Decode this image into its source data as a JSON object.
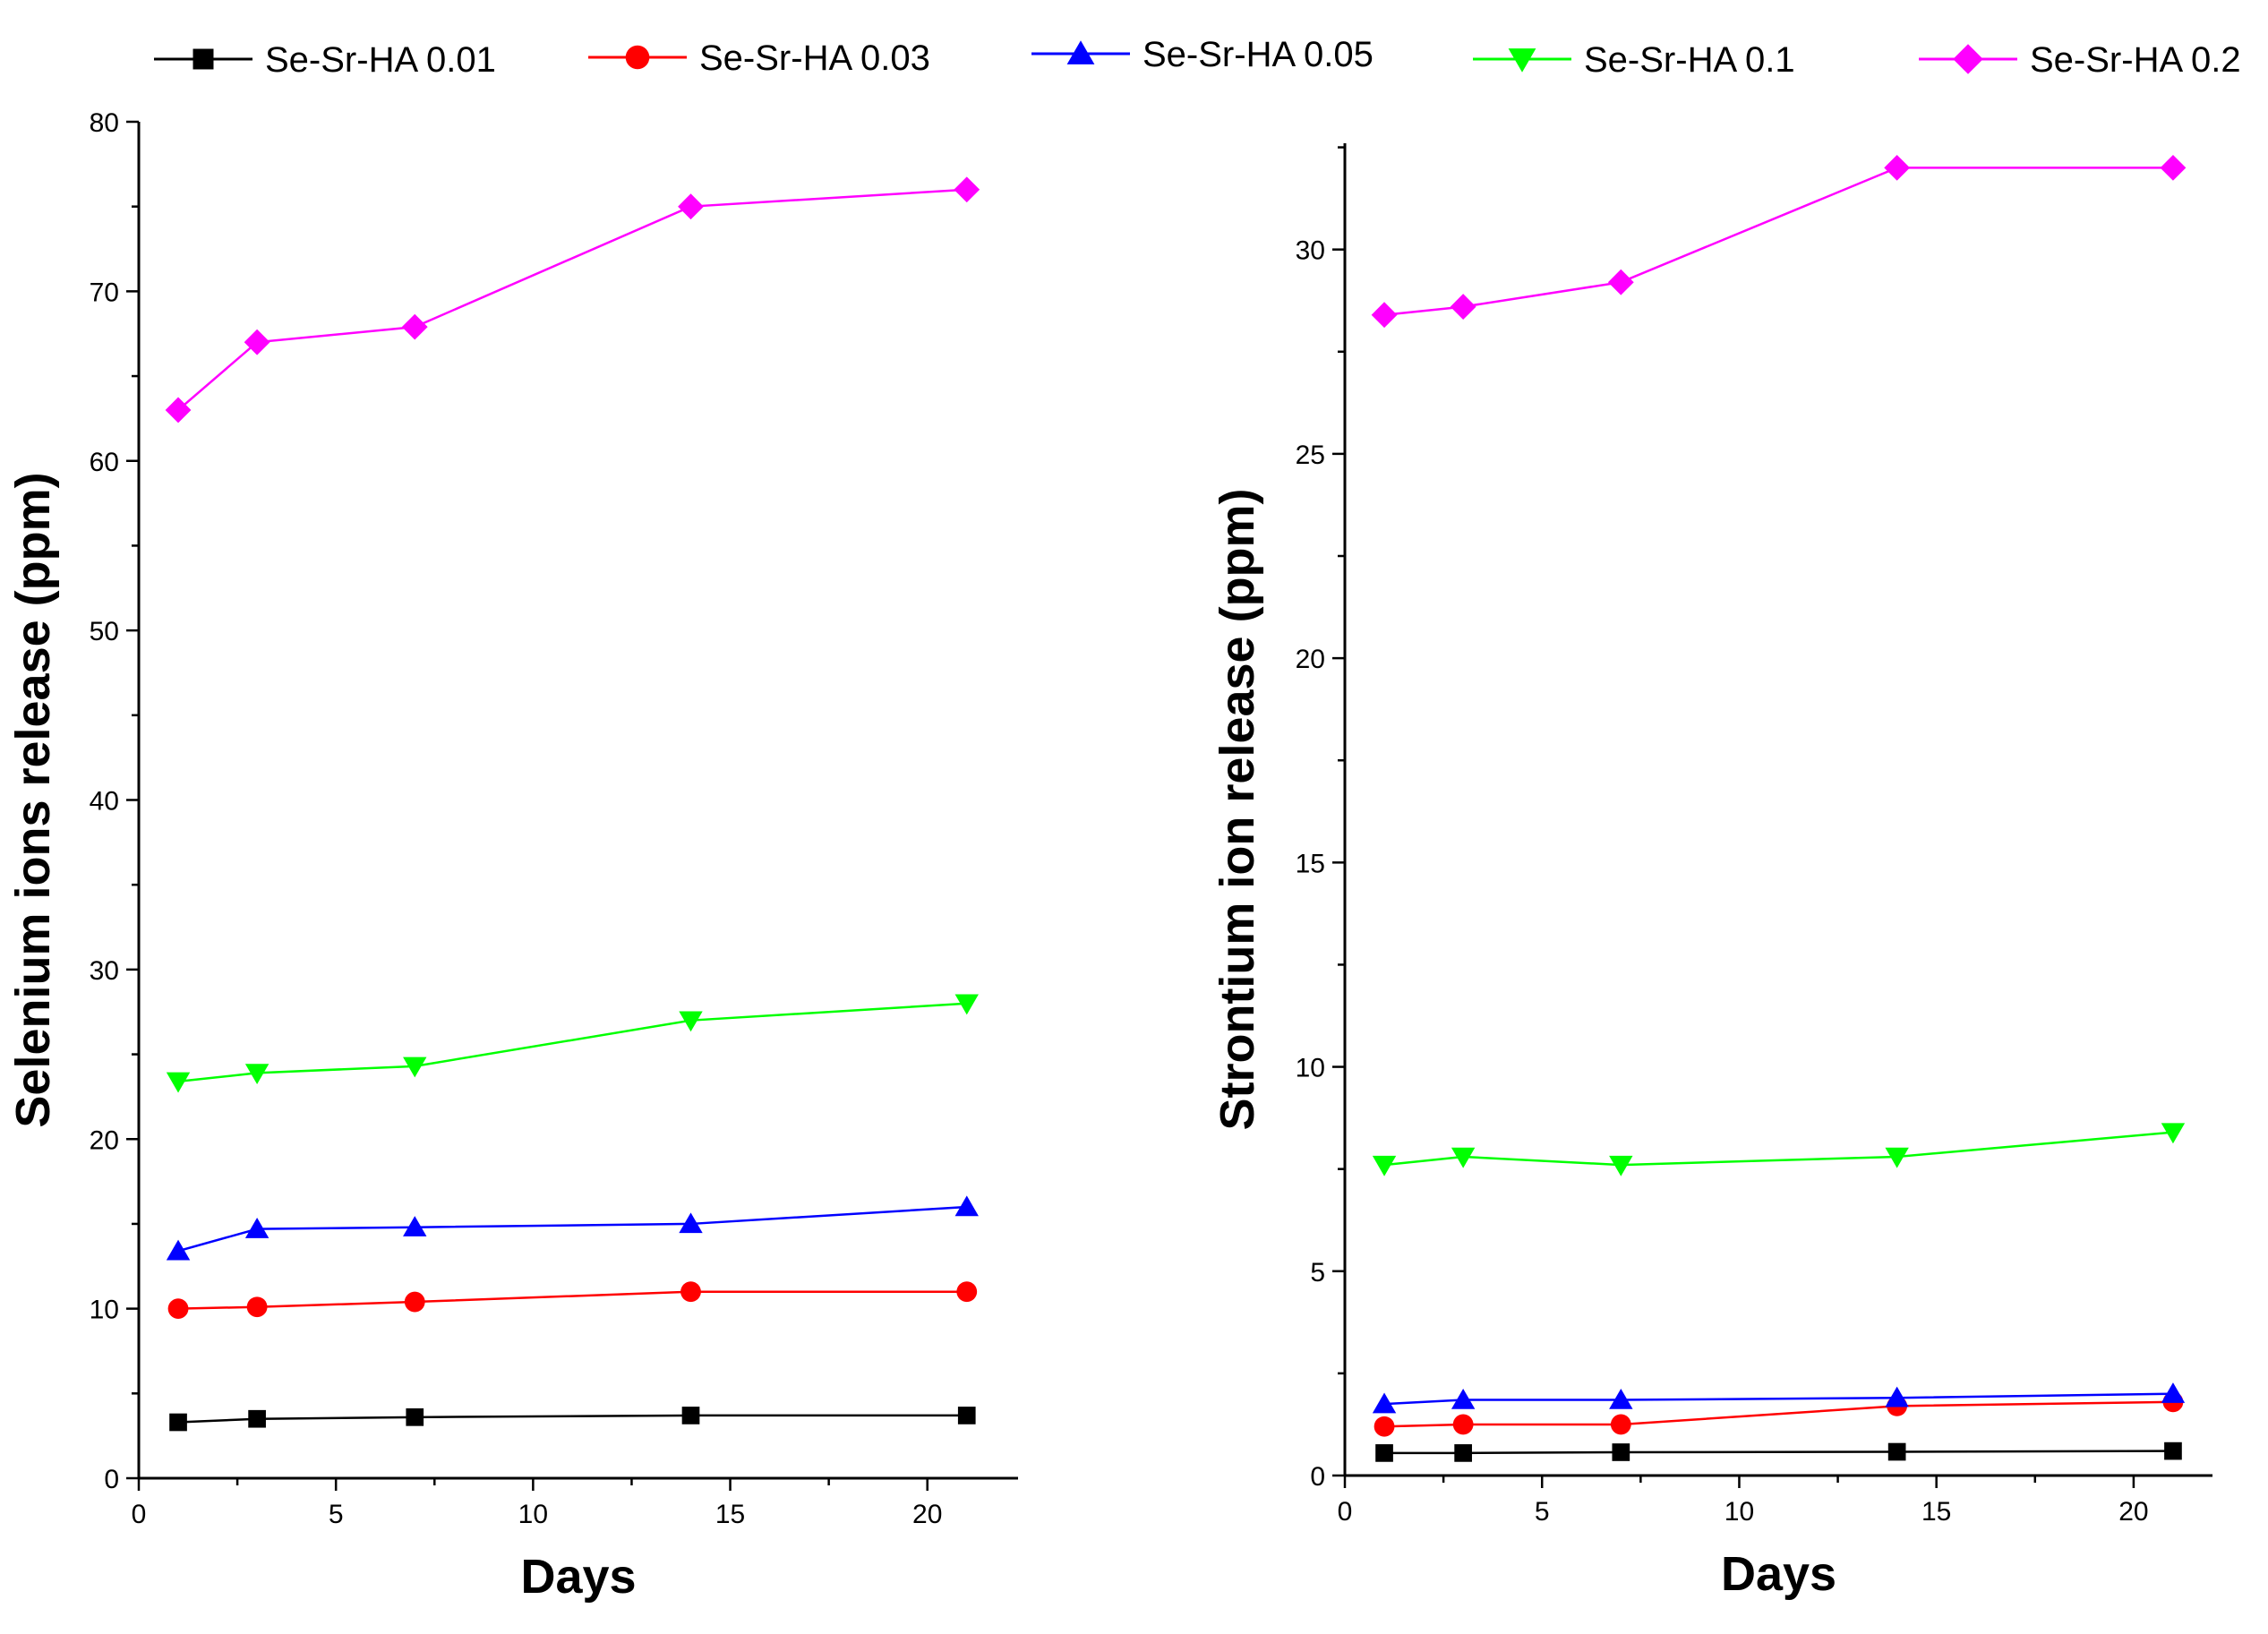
{
  "legend": [
    {
      "label": "Se-Sr-HA 0.01",
      "color": "#000000",
      "marker": "square"
    },
    {
      "label": "Se-Sr-HA 0.03",
      "color": "#ff0000",
      "marker": "circle"
    },
    {
      "label": "Se-Sr-HA 0.05",
      "color": "#0000ff",
      "marker": "triangle-up"
    },
    {
      "label": "Se-Sr-HA 0.1",
      "color": "#00ff00",
      "marker": "triangle-down"
    },
    {
      "label": "Se-Sr-HA 0.2",
      "color": "#ff00ff",
      "marker": "diamond"
    }
  ],
  "chart_data": [
    {
      "type": "line",
      "title": "",
      "xlabel": "Days",
      "ylabel": "Selenium ions release (ppm)",
      "xlim": [
        0,
        22.3
      ],
      "ylim": [
        0,
        80
      ],
      "xticks": [
        0,
        5,
        10,
        15,
        20
      ],
      "yticks": [
        0,
        10,
        20,
        30,
        40,
        50,
        60,
        70,
        80
      ],
      "x": [
        1,
        3,
        7,
        14,
        21
      ],
      "grid": false,
      "series": [
        {
          "name": "Se-Sr-HA 0.01",
          "color": "#000000",
          "marker": "square",
          "values": [
            3.3,
            3.5,
            3.6,
            3.7,
            3.7
          ]
        },
        {
          "name": "Se-Sr-HA 0.03",
          "color": "#ff0000",
          "marker": "circle",
          "values": [
            10.0,
            10.1,
            10.4,
            11.0,
            11.0
          ]
        },
        {
          "name": "Se-Sr-HA 0.05",
          "color": "#0000ff",
          "marker": "triangle-up",
          "values": [
            13.4,
            14.7,
            14.8,
            15.0,
            16.0
          ]
        },
        {
          "name": "Se-Sr-HA 0.1",
          "color": "#00ff00",
          "marker": "triangle-down",
          "values": [
            23.4,
            23.9,
            24.3,
            27.0,
            28.0
          ]
        },
        {
          "name": "Se-Sr-HA 0.2",
          "color": "#ff00ff",
          "marker": "diamond",
          "values": [
            63.0,
            67.0,
            67.9,
            75.0,
            76.0
          ]
        }
      ]
    },
    {
      "type": "line",
      "title": "",
      "xlabel": "Days",
      "ylabel": "Strontium ion release (ppm)",
      "xlim": [
        0,
        22
      ],
      "ylim": [
        0,
        32.6
      ],
      "xticks": [
        0,
        5,
        10,
        15,
        20
      ],
      "yticks": [
        0,
        5,
        10,
        15,
        20,
        25,
        30
      ],
      "x": [
        1,
        3,
        7,
        14,
        21
      ],
      "grid": false,
      "series": [
        {
          "name": "Se-Sr-HA 0.01",
          "color": "#000000",
          "marker": "square",
          "values": [
            0.55,
            0.55,
            0.57,
            0.58,
            0.6
          ]
        },
        {
          "name": "Se-Sr-HA 0.03",
          "color": "#ff0000",
          "marker": "circle",
          "values": [
            1.2,
            1.25,
            1.25,
            1.7,
            1.8
          ]
        },
        {
          "name": "Se-Sr-HA 0.05",
          "color": "#0000ff",
          "marker": "triangle-up",
          "values": [
            1.75,
            1.85,
            1.85,
            1.9,
            2.0
          ]
        },
        {
          "name": "Se-Sr-HA 0.1",
          "color": "#00ff00",
          "marker": "triangle-down",
          "values": [
            7.6,
            7.8,
            7.6,
            7.8,
            8.4
          ]
        },
        {
          "name": "Se-Sr-HA 0.2",
          "color": "#ff00ff",
          "marker": "diamond",
          "values": [
            28.4,
            28.6,
            29.2,
            32.0,
            32.0
          ]
        }
      ]
    }
  ]
}
